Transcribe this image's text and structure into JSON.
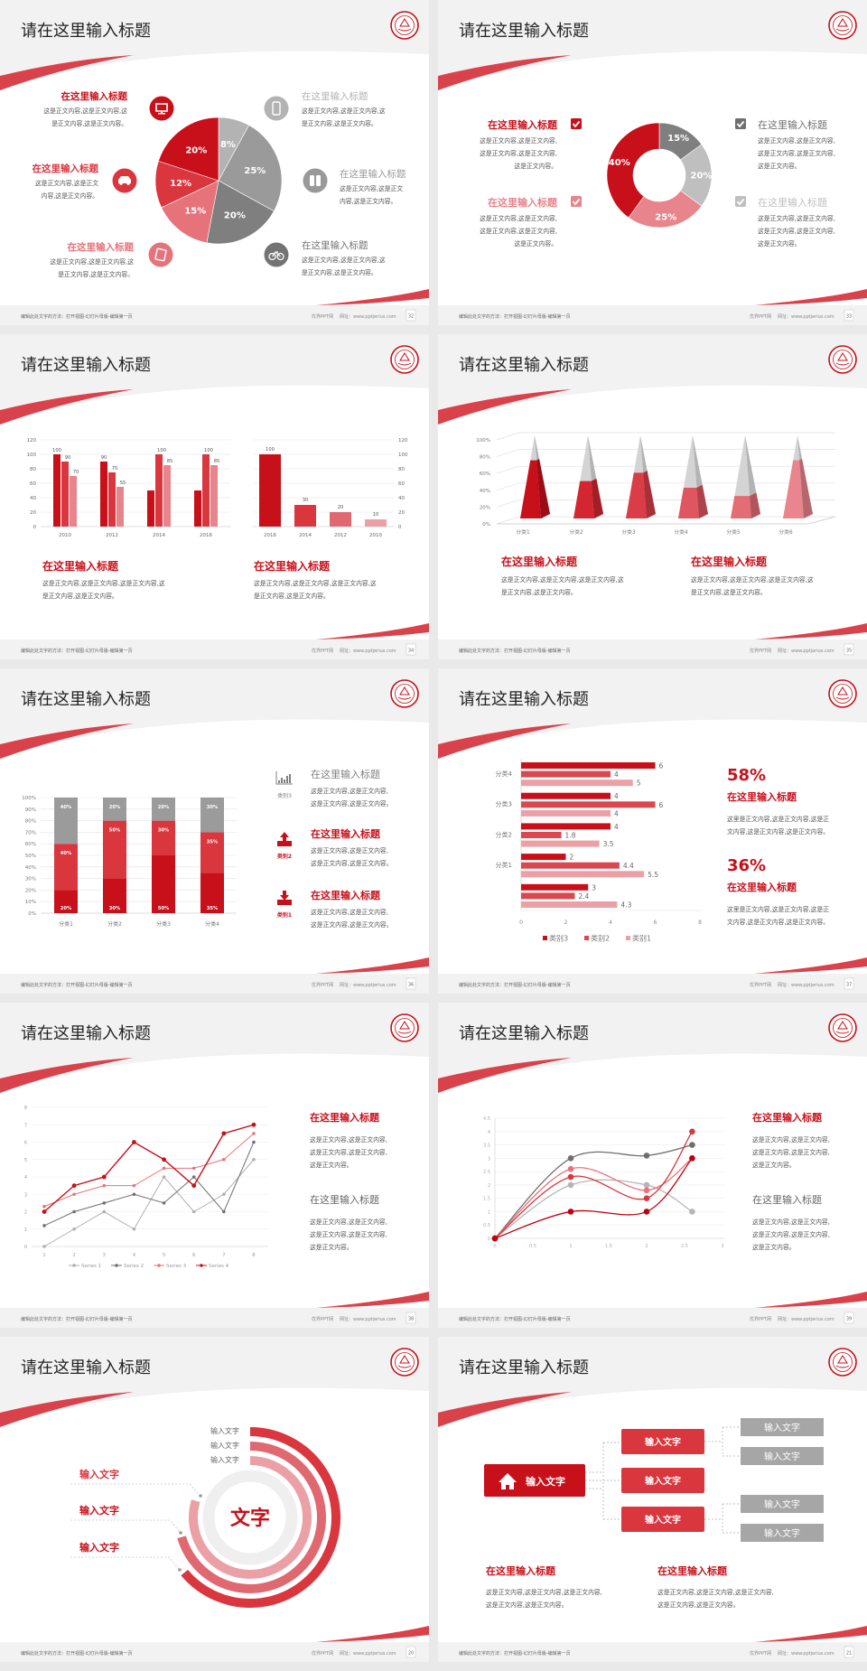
{
  "common": {
    "footer_left": "编辑此处文字的方法：打开视图-幻灯片母版-编辑第一页",
    "footer_site": "优界PPT网",
    "footer_url": "网址：www.pptjerius.com",
    "accent": "#c8101a"
  },
  "slides": [
    {
      "kind": "pie",
      "page": "32",
      "title": "请在这里输入标题",
      "chart_data": {
        "type": "pie",
        "values": [
          8,
          25,
          20,
          15,
          12,
          20
        ],
        "labels": [
          "8%",
          "25%",
          "20%",
          "15%",
          "12%",
          "20%"
        ],
        "colors": [
          "#b3b3b3",
          "#9a9a9a",
          "#7f7f7f",
          "#e6727a",
          "#d9363e",
          "#c8101a"
        ]
      },
      "items": [
        {
          "title": "在这里输入标题",
          "lines": [
            "这是正文内容,这是正文内容,这",
            "是正文内容,这是正文内容。"
          ],
          "color": "#c8101a",
          "icon": "monitor-icon"
        },
        {
          "title": "在这里输入标题",
          "lines": [
            "这是正文内容,这是正文",
            "内容,这是正文内容。"
          ],
          "color": "#d9363e",
          "icon": "car-icon"
        },
        {
          "title": "在这里输入标题",
          "lines": [
            "这是正文内容,这是正文内容,这",
            "是正文内容,这是正文内容。"
          ],
          "color": "#e6727a",
          "icon": "book-icon"
        },
        {
          "title": "在这里输入标题",
          "lines": [
            "这是正文内容,这是正文内容,这",
            "是正文内容,这是正文内容。"
          ],
          "color": "#b3b3b3",
          "icon": "phone-icon"
        },
        {
          "title": "在这里输入标题",
          "lines": [
            "这是正文内容,这是正文",
            "内容,这是正文内容。"
          ],
          "color": "#999999",
          "icon": "binoculars-icon"
        },
        {
          "title": "在这里输入标题",
          "lines": [
            "这是正文内容,这是正文内容,这",
            "是正文内容,这是正文内容。"
          ],
          "color": "#737373",
          "icon": "bicycle-icon"
        }
      ]
    },
    {
      "kind": "donut",
      "page": "33",
      "title": "请在这里输入标题",
      "chart_data": {
        "type": "pie",
        "donut": true,
        "values": [
          15,
          20,
          25,
          40
        ],
        "labels": [
          "15%",
          "20%",
          "25%",
          "40%"
        ],
        "colors": [
          "#7f7f7f",
          "#bfbfbf",
          "#e8848b",
          "#c8101a"
        ]
      },
      "items": [
        {
          "title": "在这里输入标题",
          "lines": [
            "这是正文内容,这是正文内容,",
            "这是正文内容,这是正文内容,",
            "这是正文内容。"
          ],
          "color": "#c8101a",
          "icon": "checkbox-checked-icon"
        },
        {
          "title": "在这里输入标题",
          "lines": [
            "这是正文内容,这是正文内容,",
            "这是正文内容,这是正文内容,",
            "这是正文内容。"
          ],
          "color": "#e8848b",
          "icon": "checkbox-checked-icon"
        },
        {
          "title": "在这里输入标题",
          "lines": [
            "这是正文内容,这是正文内容,",
            "这是正文内容,这是正文内容,",
            "这是正文内容。"
          ],
          "color": "#6f6f6f",
          "icon": "checkbox-checked-icon"
        },
        {
          "title": "在这里输入标题",
          "lines": [
            "这是正文内容,这是正文内容,",
            "这是正文内容,这是正文内容,",
            "这是正文内容。"
          ],
          "color": "#bfbfbf",
          "icon": "checkbox-checked-icon"
        }
      ]
    },
    {
      "kind": "bars",
      "page": "34",
      "title": "请在这里输入标题",
      "chart_data": [
        {
          "type": "bar",
          "categories": [
            "2010",
            "2012",
            "2014",
            "2016"
          ],
          "ylim": [
            0,
            120
          ],
          "yticks": [
            "0",
            "20",
            "40",
            "60",
            "80",
            "100",
            "120"
          ],
          "series": [
            {
              "values": [
                100,
                90,
                50,
                50
              ],
              "data_labels": [
                "100",
                "90",
                null,
                null
              ],
              "color": "#c8101a"
            },
            {
              "values": [
                90,
                75,
                100,
                100
              ],
              "data_labels": [
                "90",
                "75",
                "100",
                "100"
              ],
              "color": "#d9363e"
            },
            {
              "values": [
                70,
                55,
                85,
                85
              ],
              "data_labels": [
                "70",
                "55",
                "85",
                "85"
              ],
              "color": "#e8848b"
            }
          ],
          "grid": true
        },
        {
          "type": "bar",
          "categories": [
            "2016",
            "2014",
            "2012",
            "2010"
          ],
          "values": [
            100,
            30,
            20,
            10
          ],
          "data_labels": [
            "100",
            "30",
            "20",
            "10"
          ],
          "ylim": [
            0,
            120
          ],
          "yticks": [
            "0",
            "20",
            "40",
            "60",
            "80",
            "100",
            "120"
          ],
          "y_axis_side": "right",
          "colors": [
            "#c8101a",
            "#d9363e",
            "#e06870",
            "#eba0a5"
          ],
          "grid": true
        }
      ],
      "texts": [
        {
          "title": "在这里输入标题",
          "lines": [
            "这是正文内容,这是正文内容,这是正文内容,这",
            "是正文内容,这是正文内容。"
          ]
        },
        {
          "title": "在这里输入标题",
          "lines": [
            "这是正文内容,这是正文内容,这是正文内容,这",
            "是正文内容,这是正文内容。"
          ]
        }
      ]
    },
    {
      "kind": "pyramid",
      "page": "35",
      "title": "请在这里输入标题",
      "chart_data": {
        "type": "bar",
        "style": "3d-pyramid",
        "categories": [
          "分类1",
          "分类2",
          "分类3",
          "分类4",
          "分类5",
          "分类6"
        ],
        "values": [
          70,
          45,
          55,
          37,
          27,
          70
        ],
        "ylim": [
          0,
          100
        ],
        "yticks": [
          "0%",
          "20%",
          "40%",
          "60%",
          "80%",
          "100%"
        ],
        "colors": [
          "#c8101a",
          "#d42630",
          "#da3d47",
          "#df5560",
          "#e46c75",
          "#ea858d"
        ],
        "remainder_color": "#c9c9c9",
        "grid": true
      },
      "texts": [
        {
          "title": "在这里输入标题",
          "lines": [
            "这是正文内容,这是正文内容,这是正文内容,这",
            "是正文内容,这是正文内容。"
          ]
        },
        {
          "title": "在这里输入标题",
          "lines": [
            "这是正文内容,这是正文内容,这是正文内容,这",
            "是正文内容,这是正文内容。"
          ]
        }
      ]
    },
    {
      "kind": "stacked",
      "page": "36",
      "title": "请在这里输入标题",
      "chart_data": {
        "type": "bar",
        "stacked": true,
        "categories": [
          "分类1",
          "分类2",
          "分类3",
          "分类4"
        ],
        "ylim": [
          0,
          100
        ],
        "yticks": [
          "0%",
          "10%",
          "20%",
          "30%",
          "40%",
          "50%",
          "60%",
          "70%",
          "80%",
          "90%",
          "100%"
        ],
        "series": [
          {
            "name": "类别1",
            "values": [
              20,
              30,
              50,
              35
            ],
            "labels": [
              "20%",
              "30%",
              "50%",
              "35%"
            ],
            "color": "#c8101a"
          },
          {
            "name": "类别2",
            "values": [
              40,
              50,
              30,
              35
            ],
            "labels": [
              "40%",
              "50%",
              "30%",
              "35%"
            ],
            "color": "#d9363e"
          },
          {
            "name": "类别3",
            "values": [
              40,
              20,
              20,
              30
            ],
            "labels": [
              "40%",
              "20%",
              "20%",
              "30%"
            ],
            "color": "#9b9b9b"
          }
        ],
        "grid": true
      },
      "legend": [
        {
          "label": "类别3",
          "icon": "bar-chart-icon",
          "color": "#808080",
          "title": "在这里输入标题",
          "lines": [
            "这是正文内容,这是正文内容,",
            "这是正文内容,这是正文内容。"
          ]
        },
        {
          "label": "类别2",
          "icon": "upload-icon",
          "color": "#c8101a",
          "title": "在这里输入标题",
          "lines": [
            "这是正文内容,这是正文内容,",
            "这是正文内容,这是正文内容。"
          ]
        },
        {
          "label": "类别1",
          "icon": "download-icon",
          "color": "#c8101a",
          "title": "在这里输入标题",
          "lines": [
            "这是正文内容,这是正文内容,",
            "这是正文内容,这是正文内容。"
          ]
        }
      ]
    },
    {
      "kind": "hbar",
      "page": "37",
      "title": "请在这里输入标题",
      "chart_data": {
        "type": "bar",
        "orientation": "horizontal",
        "categories": [
          "分类4",
          "分类3",
          "分类2",
          "分类1",
          ""
        ],
        "series": [
          {
            "name": "类别3",
            "values": [
              6,
              4,
              4,
              2,
              3
            ],
            "color": "#c8101a"
          },
          {
            "name": "类别2",
            "values": [
              4,
              6,
              1.8,
              4.4,
              2.4
            ],
            "color": "#d9474f"
          },
          {
            "name": "类别1",
            "values": [
              5,
              4,
              3.5,
              5.5,
              4.3
            ],
            "color": "#eba0a5"
          }
        ],
        "xlim": [
          0,
          8
        ],
        "xticks": [
          "0",
          "2",
          "4",
          "6",
          "8"
        ],
        "legend": "bottom"
      },
      "stats": [
        {
          "value": "58%",
          "title": "在这里输入标题",
          "lines": [
            "这里是正文内容,这是正文内容,这是正",
            "文内容,这是正文内容,这是正文内容。"
          ]
        },
        {
          "value": "36%",
          "title": "在这里输入标题",
          "lines": [
            "这里是正文内容,这是正文内容,这是正",
            "文内容,这是正文内容,这是正文内容。"
          ]
        }
      ]
    },
    {
      "kind": "line",
      "page": "38",
      "title": "请在这里输入标题",
      "chart_data": {
        "type": "line",
        "x": [
          1,
          2,
          3,
          4,
          5,
          6,
          7,
          8
        ],
        "xticks": [
          "1",
          "2",
          "3",
          "4",
          "5",
          "6",
          "7",
          "8"
        ],
        "ylim": [
          0,
          8
        ],
        "yticks": [
          "0",
          "1",
          "2",
          "3",
          "4",
          "5",
          "6",
          "7",
          "8"
        ],
        "series": [
          {
            "name": "Series 1",
            "values": [
              0,
              1,
              2,
              1,
              4,
              2,
              3,
              5
            ],
            "color": "#b0b0b0"
          },
          {
            "name": "Series 2",
            "values": [
              1.2,
              2,
              2.5,
              3,
              2.5,
              4,
              2,
              6
            ],
            "color": "#707070"
          },
          {
            "name": "Series 3",
            "values": [
              2.3,
              3,
              3.5,
              3.5,
              4.5,
              4.5,
              5,
              6.5
            ],
            "color": "#e8737b"
          },
          {
            "name": "Series 4",
            "values": [
              2,
              3.5,
              4,
              6,
              5,
              3.5,
              6.5,
              7
            ],
            "color": "#c8101a"
          }
        ],
        "grid": true,
        "legend": "bottom"
      },
      "texts": [
        {
          "title": "在这里输入标题",
          "color": "#c8101a",
          "lines": [
            "这是正文内容,这是正文内容,",
            "这是正文内容,这是正文内容,",
            "这是正文内容。"
          ]
        },
        {
          "title": "在这里输入标题",
          "color": "#666666",
          "lines": [
            "这是正文内容,这是正文内容,",
            "这是正文内容,这是正文内容,",
            "这是正文内容。"
          ]
        }
      ]
    },
    {
      "kind": "curve",
      "page": "39",
      "title": "请在这里输入标题",
      "chart_data": {
        "type": "scatter",
        "smooth": true,
        "x": [
          0,
          1,
          2,
          2.6
        ],
        "xlim": [
          0,
          3
        ],
        "xticks": [
          "0",
          "0.5",
          "1",
          "1.5",
          "2",
          "2.5",
          "3"
        ],
        "ylim": [
          0,
          4.5
        ],
        "yticks": [
          "0",
          "0.5",
          "1",
          "1.5",
          "2",
          "2.5",
          "3",
          "3.5",
          "4",
          "4.5"
        ],
        "series": [
          {
            "values": [
              0,
              3,
              3.1,
              3.5
            ],
            "color": "#6f6f6f"
          },
          {
            "values": [
              0,
              2,
              2,
              1
            ],
            "color": "#b5b5b5"
          },
          {
            "values": [
              0,
              2.6,
              1.8,
              3
            ],
            "color": "#e8737b"
          },
          {
            "values": [
              0,
              2.3,
              1.5,
              4
            ],
            "color": "#d9363e"
          },
          {
            "values": [
              0,
              1,
              1,
              3
            ],
            "color": "#c00010"
          }
        ],
        "grid": true
      },
      "texts": [
        {
          "title": "在这里输入标题",
          "color": "#c8101a",
          "lines": [
            "这是正文内容,这是正文内容,",
            "这是正文内容,这是正文内容,",
            "这是正文内容。"
          ]
        },
        {
          "title": "在这里输入标题",
          "color": "#666666",
          "lines": [
            "这是正文内容,这是正文内容,",
            "这是正文内容,这是正文内容,",
            "这是正文内容。"
          ]
        }
      ]
    },
    {
      "kind": "rings",
      "page": "20",
      "title": "请在这里输入标题",
      "center_text": "文字",
      "ring_labels": [
        "输入文字",
        "输入文字",
        "输入文字"
      ],
      "callouts": [
        "输入文字",
        "输入文字",
        "输入文字"
      ],
      "ring_colors": [
        "#d9363e",
        "#e06870",
        "#eba0a5"
      ]
    },
    {
      "kind": "tree",
      "page": "21",
      "title": "请在这里输入标题",
      "root": {
        "label": "输入文字",
        "icon": "home-icon"
      },
      "branches": [
        "输入文字",
        "输入文字",
        "输入文字"
      ],
      "leaves": [
        "输入文字",
        "输入文字",
        "输入文字",
        "输入文字"
      ],
      "texts": [
        {
          "title": "在这里输入标题",
          "lines": [
            "这是正文内容,这是正文内容,这是正文内容,",
            "这是正文内容,这是正文内容。"
          ]
        },
        {
          "title": "在这里输入标题",
          "lines": [
            "这是正文内容,这是正文内容,这是正文内容,",
            "这是正文内容,这是正文内容。"
          ]
        }
      ]
    }
  ]
}
